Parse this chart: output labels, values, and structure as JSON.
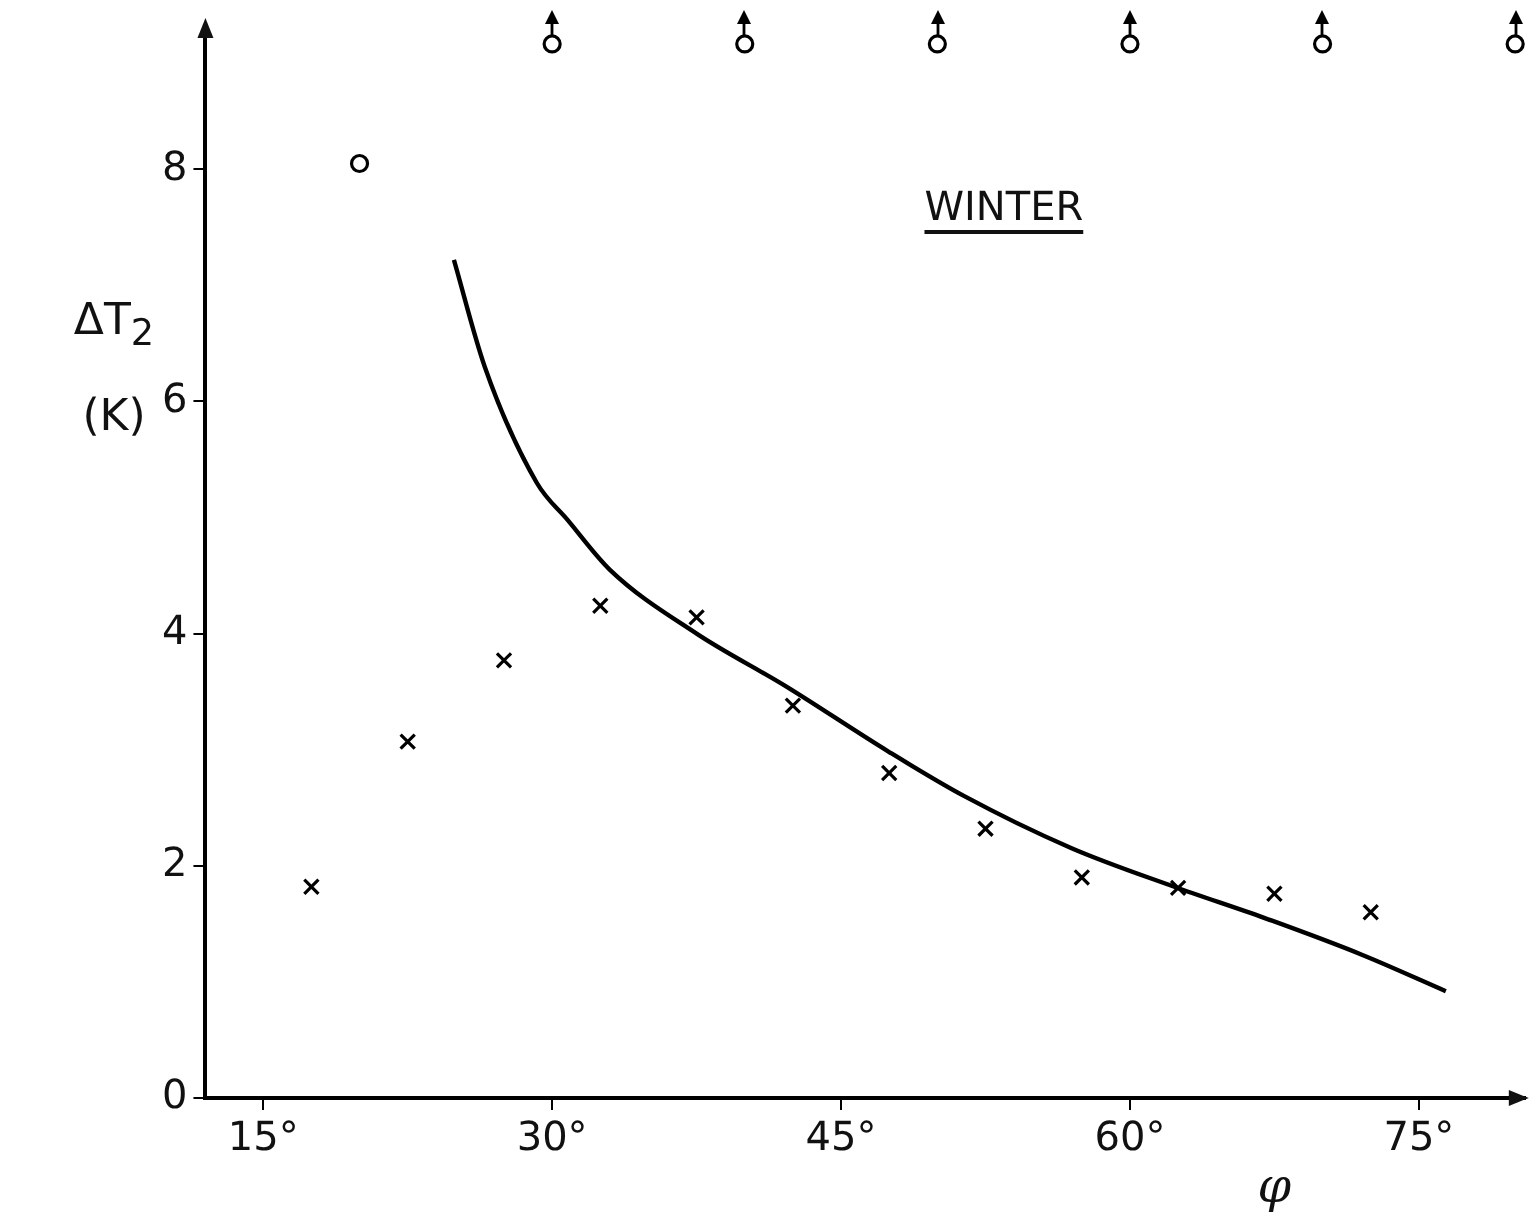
{
  "chart_data": {
    "type": "scatter",
    "xlabel": "φ",
    "ylabel": "ΔT$_{2}$ (K)",
    "annotations": [
      "WINTER"
    ],
    "xlim": [
      12,
      80.5
    ],
    "ylim": [
      0,
      9.2
    ],
    "xticks": [
      {
        "value": 15,
        "label": "15°"
      },
      {
        "value": 30,
        "label": "30°"
      },
      {
        "value": 45,
        "label": "45°"
      },
      {
        "value": 60,
        "label": "60°"
      },
      {
        "value": 75,
        "label": "75°"
      }
    ],
    "yticks": [
      0,
      2,
      4,
      6,
      8
    ],
    "grid": false,
    "legend": false,
    "series": [
      {
        "marker": "cross",
        "color": "#000000",
        "x": [
          17.5,
          22.5,
          27.5,
          32.5,
          37.5,
          42.5,
          47.5,
          52.5,
          57.5,
          62.5,
          67.5,
          72.5
        ],
        "values": [
          1.82,
          3.07,
          3.77,
          4.24,
          4.14,
          3.38,
          2.8,
          2.32,
          1.9,
          1.81,
          1.76,
          1.6
        ]
      },
      {
        "marker": "circle",
        "color": "#000000",
        "x": [
          20
        ],
        "values": [
          8.05
        ]
      },
      {
        "marker": "circle",
        "color": "#000000",
        "x": [
          30,
          40,
          50,
          60,
          70,
          80
        ],
        "values": [
          9.08,
          9.08,
          9.08,
          9.08,
          9.08,
          9.08
        ]
      },
      {
        "type": "line",
        "marker": "none",
        "color": "#000000",
        "x": [
          24.9,
          26.5,
          29.2,
          30.8,
          33,
          37.5,
          42.1,
          47.5,
          51.4,
          57,
          62.3,
          67,
          72.1,
          76.4
        ],
        "values": [
          7.22,
          6.3,
          5.3,
          4.98,
          4.55,
          4.0,
          3.55,
          2.98,
          2.6,
          2.15,
          1.82,
          1.55,
          1.23,
          0.92
        ]
      }
    ]
  }
}
